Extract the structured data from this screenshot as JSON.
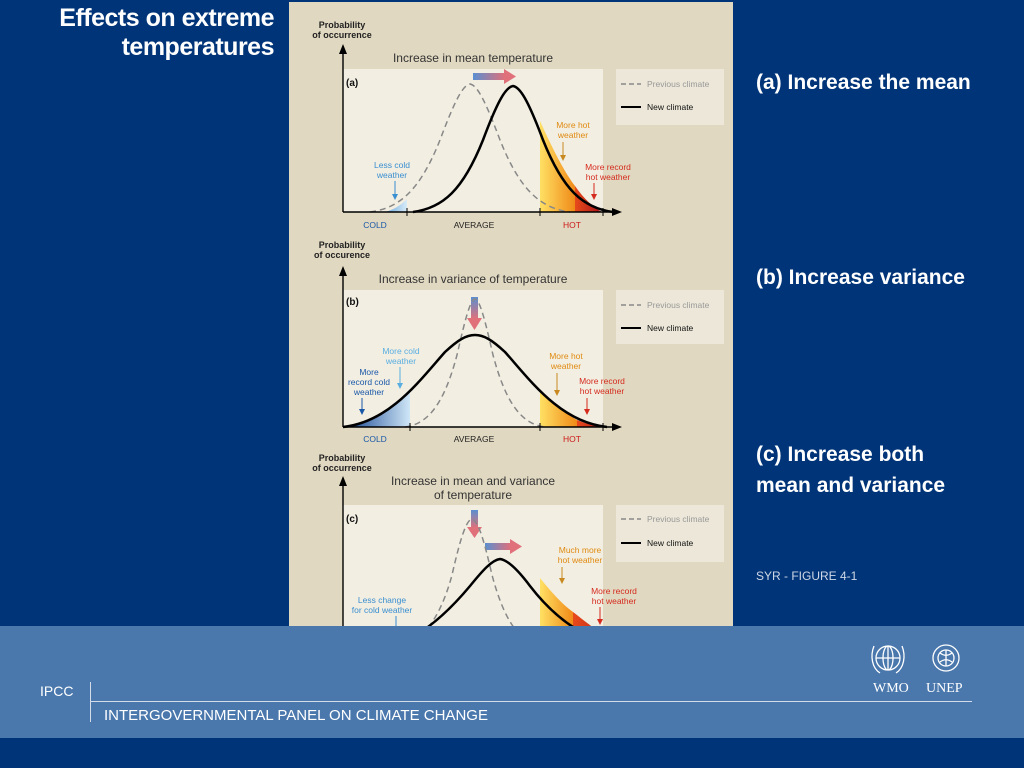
{
  "slide": {
    "title_line1": "Effects on extreme",
    "title_line2": "temperatures",
    "label_a": "(a) Increase the mean",
    "label_b": "(b) Increase variance",
    "label_c1": "(c) Increase both",
    "label_c2": "mean and variance",
    "source": "SYR - FIGURE 4-1"
  },
  "footer": {
    "short": "IPCC",
    "long": "INTERGOVERNMENTAL PANEL ON CLIMATE CHANGE",
    "logo1": "WMO",
    "logo2": "UNEP"
  },
  "figure": {
    "colors": {
      "background": "#e0d8c0",
      "plot": "#f2eee2",
      "cold": "#2a5da8",
      "hot": "#f7a81b",
      "record_hot": "#d52b1e",
      "axis_cold": "#1a58a8",
      "axis_hot": "#cc1a1a"
    },
    "ylabel_1": "Probability",
    "ylabel_2": "of occurrence",
    "ylabel_2b": "of occurence",
    "axis_cold": "COLD",
    "axis_average": "AVERAGE",
    "axis_hot": "HOT",
    "legend_previous": "Previous climate",
    "legend_new": "New climate",
    "panels": [
      {
        "tag": "(a)",
        "heading1": "Increase in mean temperature",
        "heading2": "",
        "annotations": {
          "less_cold_1": "Less cold",
          "less_cold_2": "weather",
          "more_hot_1": "More hot",
          "more_hot_2": "weather",
          "record_hot_1": "More record",
          "record_hot_2": "hot weather"
        }
      },
      {
        "tag": "(b)",
        "heading1": "Increase in variance of temperature",
        "heading2": "",
        "annotations": {
          "more_cold_1": "More cold",
          "more_cold_2": "weather",
          "record_cold_1": "More",
          "record_cold_2": "record cold",
          "record_cold_3": "weather",
          "more_hot_1": "More hot",
          "more_hot_2": "weather",
          "record_hot_1": "More record",
          "record_hot_2": "hot weather"
        }
      },
      {
        "tag": "(c)",
        "heading1": "Increase in mean and variance",
        "heading2": "of temperature",
        "annotations": {
          "less_change_1": "Less change",
          "less_change_2": "for cold weather",
          "much_hot_1": "Much more",
          "much_hot_2": "hot weather",
          "record_hot_1": "More record",
          "record_hot_2": "hot weather"
        }
      }
    ]
  }
}
